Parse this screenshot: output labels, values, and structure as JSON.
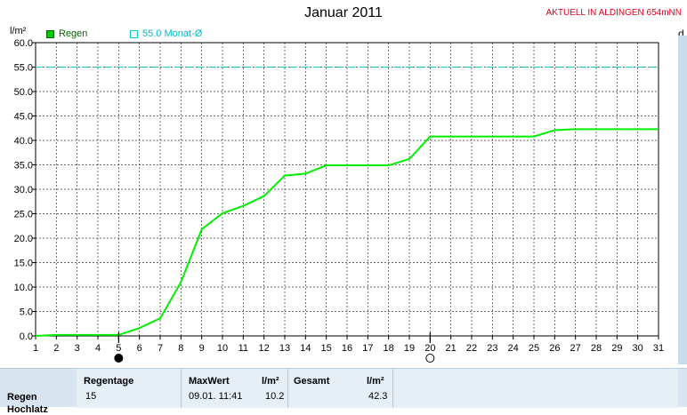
{
  "header": {
    "title": "Januar 2011",
    "station": "AKTUELL IN ALDINGEN 654mNN",
    "y_unit": "l/m²",
    "right_cut_label": "d"
  },
  "legend": {
    "series_label": "Regen",
    "series_color": "#00cc00",
    "reference_label": "55.0 Monat-Ø",
    "reference_color": "#00cccc"
  },
  "chart_data": {
    "type": "line",
    "title": "Januar 2011",
    "ylabel": "l/m²",
    "xlim": [
      1,
      31
    ],
    "ylim": [
      0,
      60
    ],
    "grid": true,
    "y_ticks": [
      "0.0",
      "5.0",
      "10.0",
      "15.0",
      "20.0",
      "25.0",
      "30.0",
      "35.0",
      "40.0",
      "45.0",
      "50.0",
      "55.0",
      "60.0"
    ],
    "x_ticks": [
      "1",
      "2",
      "3",
      "4",
      "5",
      "6",
      "7",
      "8",
      "9",
      "10",
      "11",
      "12",
      "13",
      "14",
      "15",
      "16",
      "17",
      "18",
      "19",
      "20",
      "21",
      "22",
      "23",
      "24",
      "25",
      "26",
      "27",
      "28",
      "29",
      "30",
      "31"
    ],
    "reference_line": {
      "label": "55.0 Monat-Ø",
      "value": 55.0,
      "style": "dashed",
      "color": "#00cccc"
    },
    "series": [
      {
        "name": "Regen",
        "color": "#00ee00",
        "x": [
          1,
          2,
          3,
          4,
          5,
          6,
          7,
          8,
          9,
          10,
          11,
          12,
          13,
          14,
          15,
          16,
          17,
          18,
          19,
          20,
          21,
          22,
          23,
          24,
          25,
          26,
          27,
          28,
          29,
          30,
          31
        ],
        "y": [
          0.0,
          0.2,
          0.2,
          0.2,
          0.2,
          1.6,
          3.6,
          11.0,
          21.8,
          25.1,
          26.6,
          28.6,
          32.8,
          33.2,
          34.9,
          34.9,
          34.9,
          34.9,
          36.2,
          40.8,
          40.8,
          40.8,
          40.8,
          40.8,
          40.8,
          42.1,
          42.3,
          42.3,
          42.3,
          42.3,
          42.3
        ]
      }
    ],
    "markers": [
      {
        "day": 5,
        "symbol": "full-moon"
      },
      {
        "day": 20,
        "symbol": "new-moon"
      }
    ]
  },
  "summary": {
    "row_label": "Regen",
    "row_label_next": "Hochlatz",
    "regentage_header": "Regentage",
    "regentage_value": "15",
    "maxwert_header": "MaxWert",
    "maxwert_unit": "l/m²",
    "maxwert_time": "09.01.  11:41",
    "maxwert_value": "10.2",
    "gesamt_header": "Gesamt",
    "gesamt_unit": "l/m²",
    "gesamt_value": "42.3"
  }
}
